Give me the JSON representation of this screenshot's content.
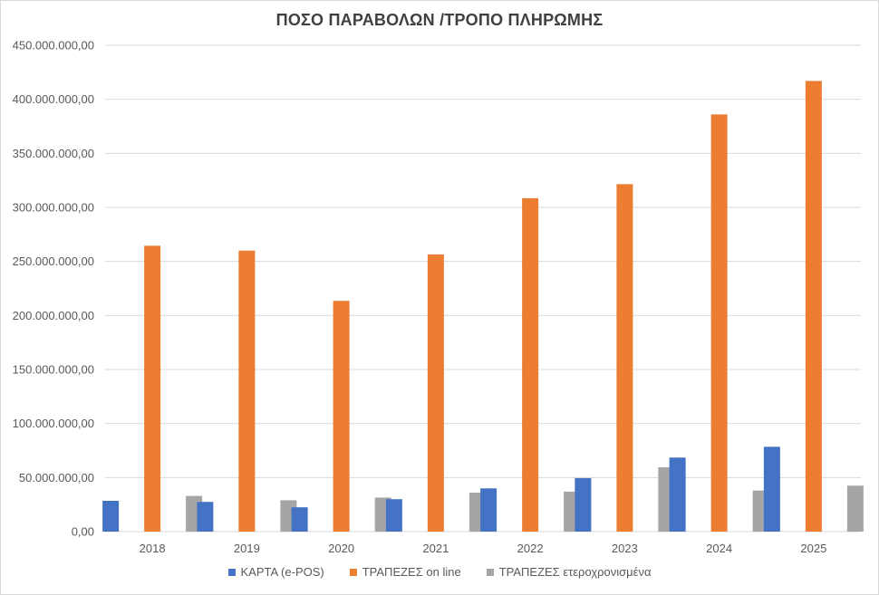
{
  "chart_data": {
    "type": "bar",
    "title": "ΠΟΣΟ ΠΑΡΑΒΟΛΩΝ /ΤΡΟΠΟ ΠΛΗΡΩΜΗΣ",
    "xlabel": "",
    "ylabel": "",
    "categories": [
      "2018",
      "2019",
      "2020",
      "2021",
      "2022",
      "2023",
      "2024",
      "2025"
    ],
    "ylim": [
      0,
      450000000
    ],
    "yticks": [
      0,
      50000000,
      100000000,
      150000000,
      200000000,
      250000000,
      300000000,
      350000000,
      400000000,
      450000000
    ],
    "ytick_labels": [
      "0,00",
      "50.000.000,00",
      "100.000.000,00",
      "150.000.000,00",
      "200.000.000,00",
      "250.000.000,00",
      "300.000.000,00",
      "350.000.000,00",
      "400.000.000,00",
      "450.000.000,00"
    ],
    "grid": true,
    "legend_position": "bottom",
    "series": [
      {
        "name": "ΚΑΡΤΑ (e-POS)",
        "color": "#4472c4",
        "values": [
          28500000,
          27500000,
          22500000,
          30000000,
          40000000,
          49500000,
          68500000,
          78500000
        ]
      },
      {
        "name": "ΤΡΑΠΕΖΕΣ on line",
        "color": "#ed7d31",
        "values": [
          264500000,
          260000000,
          213500000,
          256500000,
          308500000,
          321500000,
          386000000,
          417000000
        ]
      },
      {
        "name": "ΤΡΑΠΕΖΕΣ ετεροχρονισμένα",
        "color": "#a5a5a5",
        "values": [
          33000000,
          29000000,
          31500000,
          36000000,
          37000000,
          59500000,
          38000000,
          42500000
        ]
      }
    ]
  }
}
